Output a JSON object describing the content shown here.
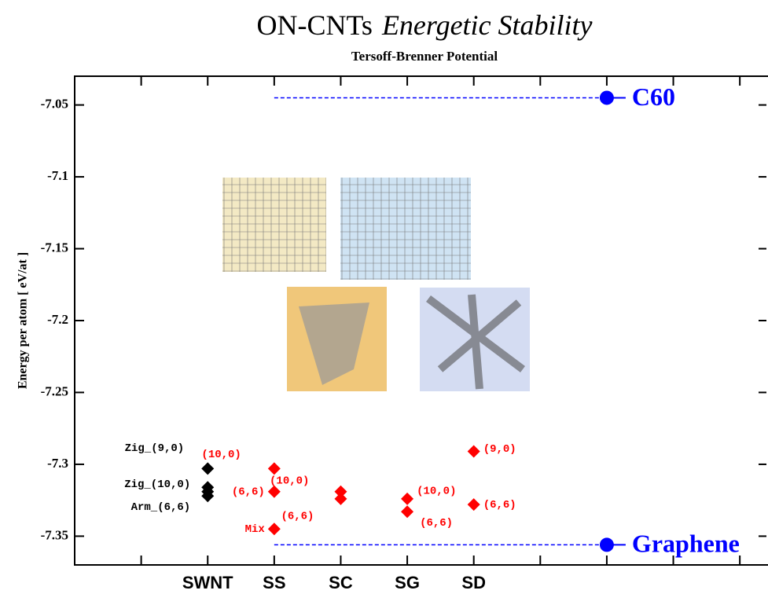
{
  "chart_data": {
    "type": "scatter",
    "title_parts": [
      "ON-CNTs",
      "Energetic Stability"
    ],
    "subtitle": "Tersoff-Brenner Potential",
    "ylabel": "Energy per atom  [ eV/at ]",
    "xlim": [
      0,
      10.4
    ],
    "xticks": [
      {
        "value": 2,
        "label": "SWNT"
      },
      {
        "value": 3,
        "label": "SS"
      },
      {
        "value": 4,
        "label": "SC"
      },
      {
        "value": 5,
        "label": "SG"
      },
      {
        "value": 6,
        "label": "SD"
      }
    ],
    "xminor_ticks": [
      1,
      7,
      8,
      9,
      10
    ],
    "ylim": [
      -7.37,
      -7.03
    ],
    "yticks": [
      -7.05,
      -7.1,
      -7.15,
      -7.2,
      -7.25,
      -7.3,
      -7.35
    ],
    "series": [
      {
        "color": "#000000",
        "x": [
          2,
          2,
          2,
          2
        ],
        "values": [
          -7.303,
          -7.316,
          -7.319,
          -7.322
        ],
        "point_labels": [
          "Zig_(9,0)",
          "Zig_(10,0)",
          null,
          "Arm_(6,6)"
        ]
      },
      {
        "color": "#ff0000",
        "x": [
          3,
          3,
          3
        ],
        "values": [
          -7.303,
          -7.319,
          -7.345
        ],
        "point_labels": [
          "(10,0)",
          "(6,6)",
          "Mix"
        ]
      },
      {
        "color": "#ff0000",
        "x": [
          4,
          4
        ],
        "values": [
          -7.319,
          -7.324
        ],
        "point_labels": [
          "(10,0)",
          "(6,6)"
        ]
      },
      {
        "color": "#ff0000",
        "x": [
          5,
          5
        ],
        "values": [
          -7.324,
          -7.333
        ],
        "point_labels": [
          "(10,0)",
          "(6,6)"
        ]
      },
      {
        "color": "#ff0000",
        "x": [
          6,
          6
        ],
        "values": [
          -7.291,
          -7.328
        ],
        "point_labels": [
          "(9,0)",
          "(6,6)"
        ]
      }
    ],
    "references": [
      {
        "label": "C60",
        "value": -7.045,
        "x": [
          3,
          8
        ],
        "color": "#0000ff"
      },
      {
        "label": "Graphene",
        "value": -7.356,
        "x": [
          3,
          8
        ],
        "color": "#0000ff"
      }
    ]
  }
}
